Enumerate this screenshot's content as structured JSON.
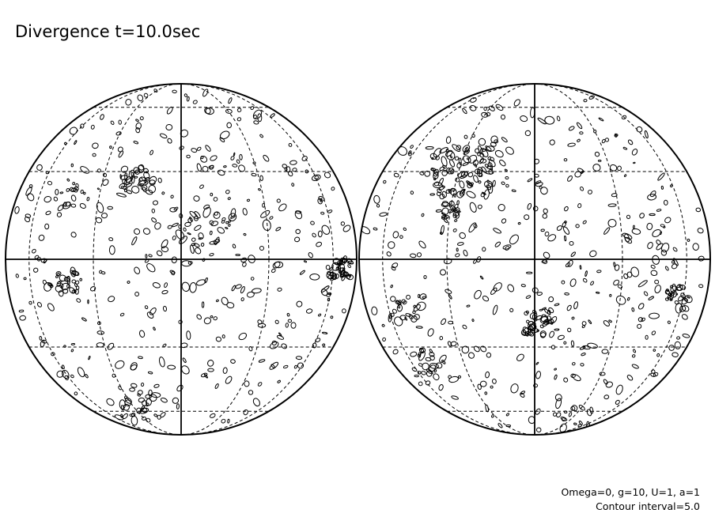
{
  "title": "Divergence t=10.0sec",
  "parameters": "Omega=0, g=10, U=1, a=1",
  "contour_interval": "Contour interval=5.0"
}
